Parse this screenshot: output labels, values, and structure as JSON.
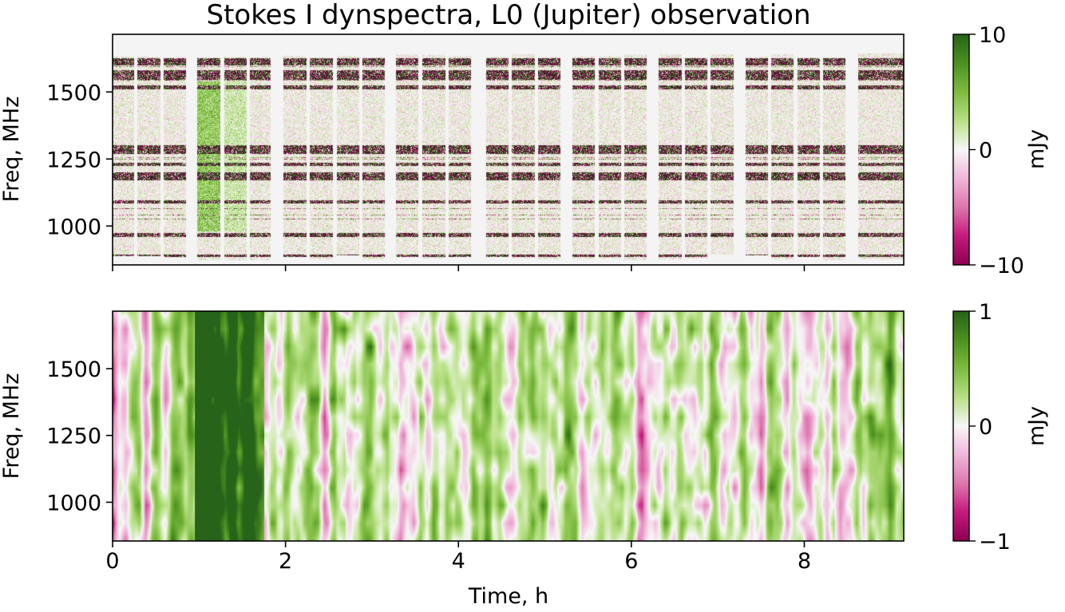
{
  "chart_data": [
    {
      "type": "heatmap",
      "title": "Stokes I dynspectra, L0 (Jupiter) observation",
      "ylabel": "Freq, MHz",
      "xlabel": "",
      "xlim": [
        0,
        9.15
      ],
      "ylim": [
        855,
        1715
      ],
      "xticks": [
        0,
        2,
        4,
        6,
        8
      ],
      "xtick_labels": [],
      "yticks": [
        1000,
        1250,
        1500
      ],
      "ytick_labels": [
        "1000",
        "1250",
        "1500"
      ],
      "colorbar": {
        "label": "mJy",
        "range": [
          -10,
          10
        ],
        "ticks": [
          -10,
          0,
          10
        ],
        "tick_labels": [
          "−10",
          "0",
          "10"
        ],
        "colormap": "PiYG"
      },
      "scans": [
        [
          0.0,
          0.25
        ],
        [
          0.29,
          0.55
        ],
        [
          0.59,
          0.85
        ],
        [
          0.98,
          1.25
        ],
        [
          1.29,
          1.55
        ],
        [
          1.59,
          1.83
        ],
        [
          1.98,
          2.24
        ],
        [
          2.28,
          2.55
        ],
        [
          2.59,
          2.85
        ],
        [
          2.89,
          3.15
        ],
        [
          3.28,
          3.54
        ],
        [
          3.58,
          3.85
        ],
        [
          3.89,
          4.15
        ],
        [
          4.32,
          4.58
        ],
        [
          4.62,
          4.88
        ],
        [
          4.92,
          5.18
        ],
        [
          5.32,
          5.58
        ],
        [
          5.62,
          5.88
        ],
        [
          5.92,
          6.18
        ],
        [
          6.32,
          6.58
        ],
        [
          6.62,
          6.88
        ],
        [
          6.92,
          7.18
        ],
        [
          7.32,
          7.58
        ],
        [
          7.62,
          7.88
        ],
        [
          7.92,
          8.18
        ],
        [
          8.22,
          8.48
        ],
        [
          8.62,
          9.15
        ]
      ],
      "rfi_bands_mhz": [
        [
          885,
          895
        ],
        [
          960,
          975
        ],
        [
          1085,
          1095
        ],
        [
          1170,
          1200
        ],
        [
          1225,
          1235
        ],
        [
          1270,
          1300
        ],
        [
          1510,
          1525
        ],
        [
          1545,
          1580
        ],
        [
          1600,
          1625
        ]
      ],
      "burst": {
        "x_range": [
          0.98,
          1.55
        ],
        "y_range": [
          980,
          1540
        ],
        "value_mjy": 4
      }
    },
    {
      "type": "heatmap",
      "title": "",
      "ylabel": "Freq, MHz",
      "xlabel": "Time, h",
      "xlim": [
        0,
        9.15
      ],
      "ylim": [
        855,
        1715
      ],
      "xticks": [
        0,
        2,
        4,
        6,
        8
      ],
      "xtick_labels": [
        "0",
        "2",
        "4",
        "6",
        "8"
      ],
      "yticks": [
        1000,
        1250,
        1500
      ],
      "ytick_labels": [
        "1000",
        "1250",
        "1500"
      ],
      "colorbar": {
        "label": "mJy",
        "range": [
          -1,
          1
        ],
        "ticks": [
          -1,
          0,
          1
        ],
        "tick_labels": [
          "−1",
          "0",
          "1"
        ],
        "colormap": "PiYG"
      },
      "burst": {
        "x_range": [
          0.95,
          1.75
        ],
        "y_range": [
          855,
          1715
        ],
        "value_mjy": 1
      }
    }
  ]
}
